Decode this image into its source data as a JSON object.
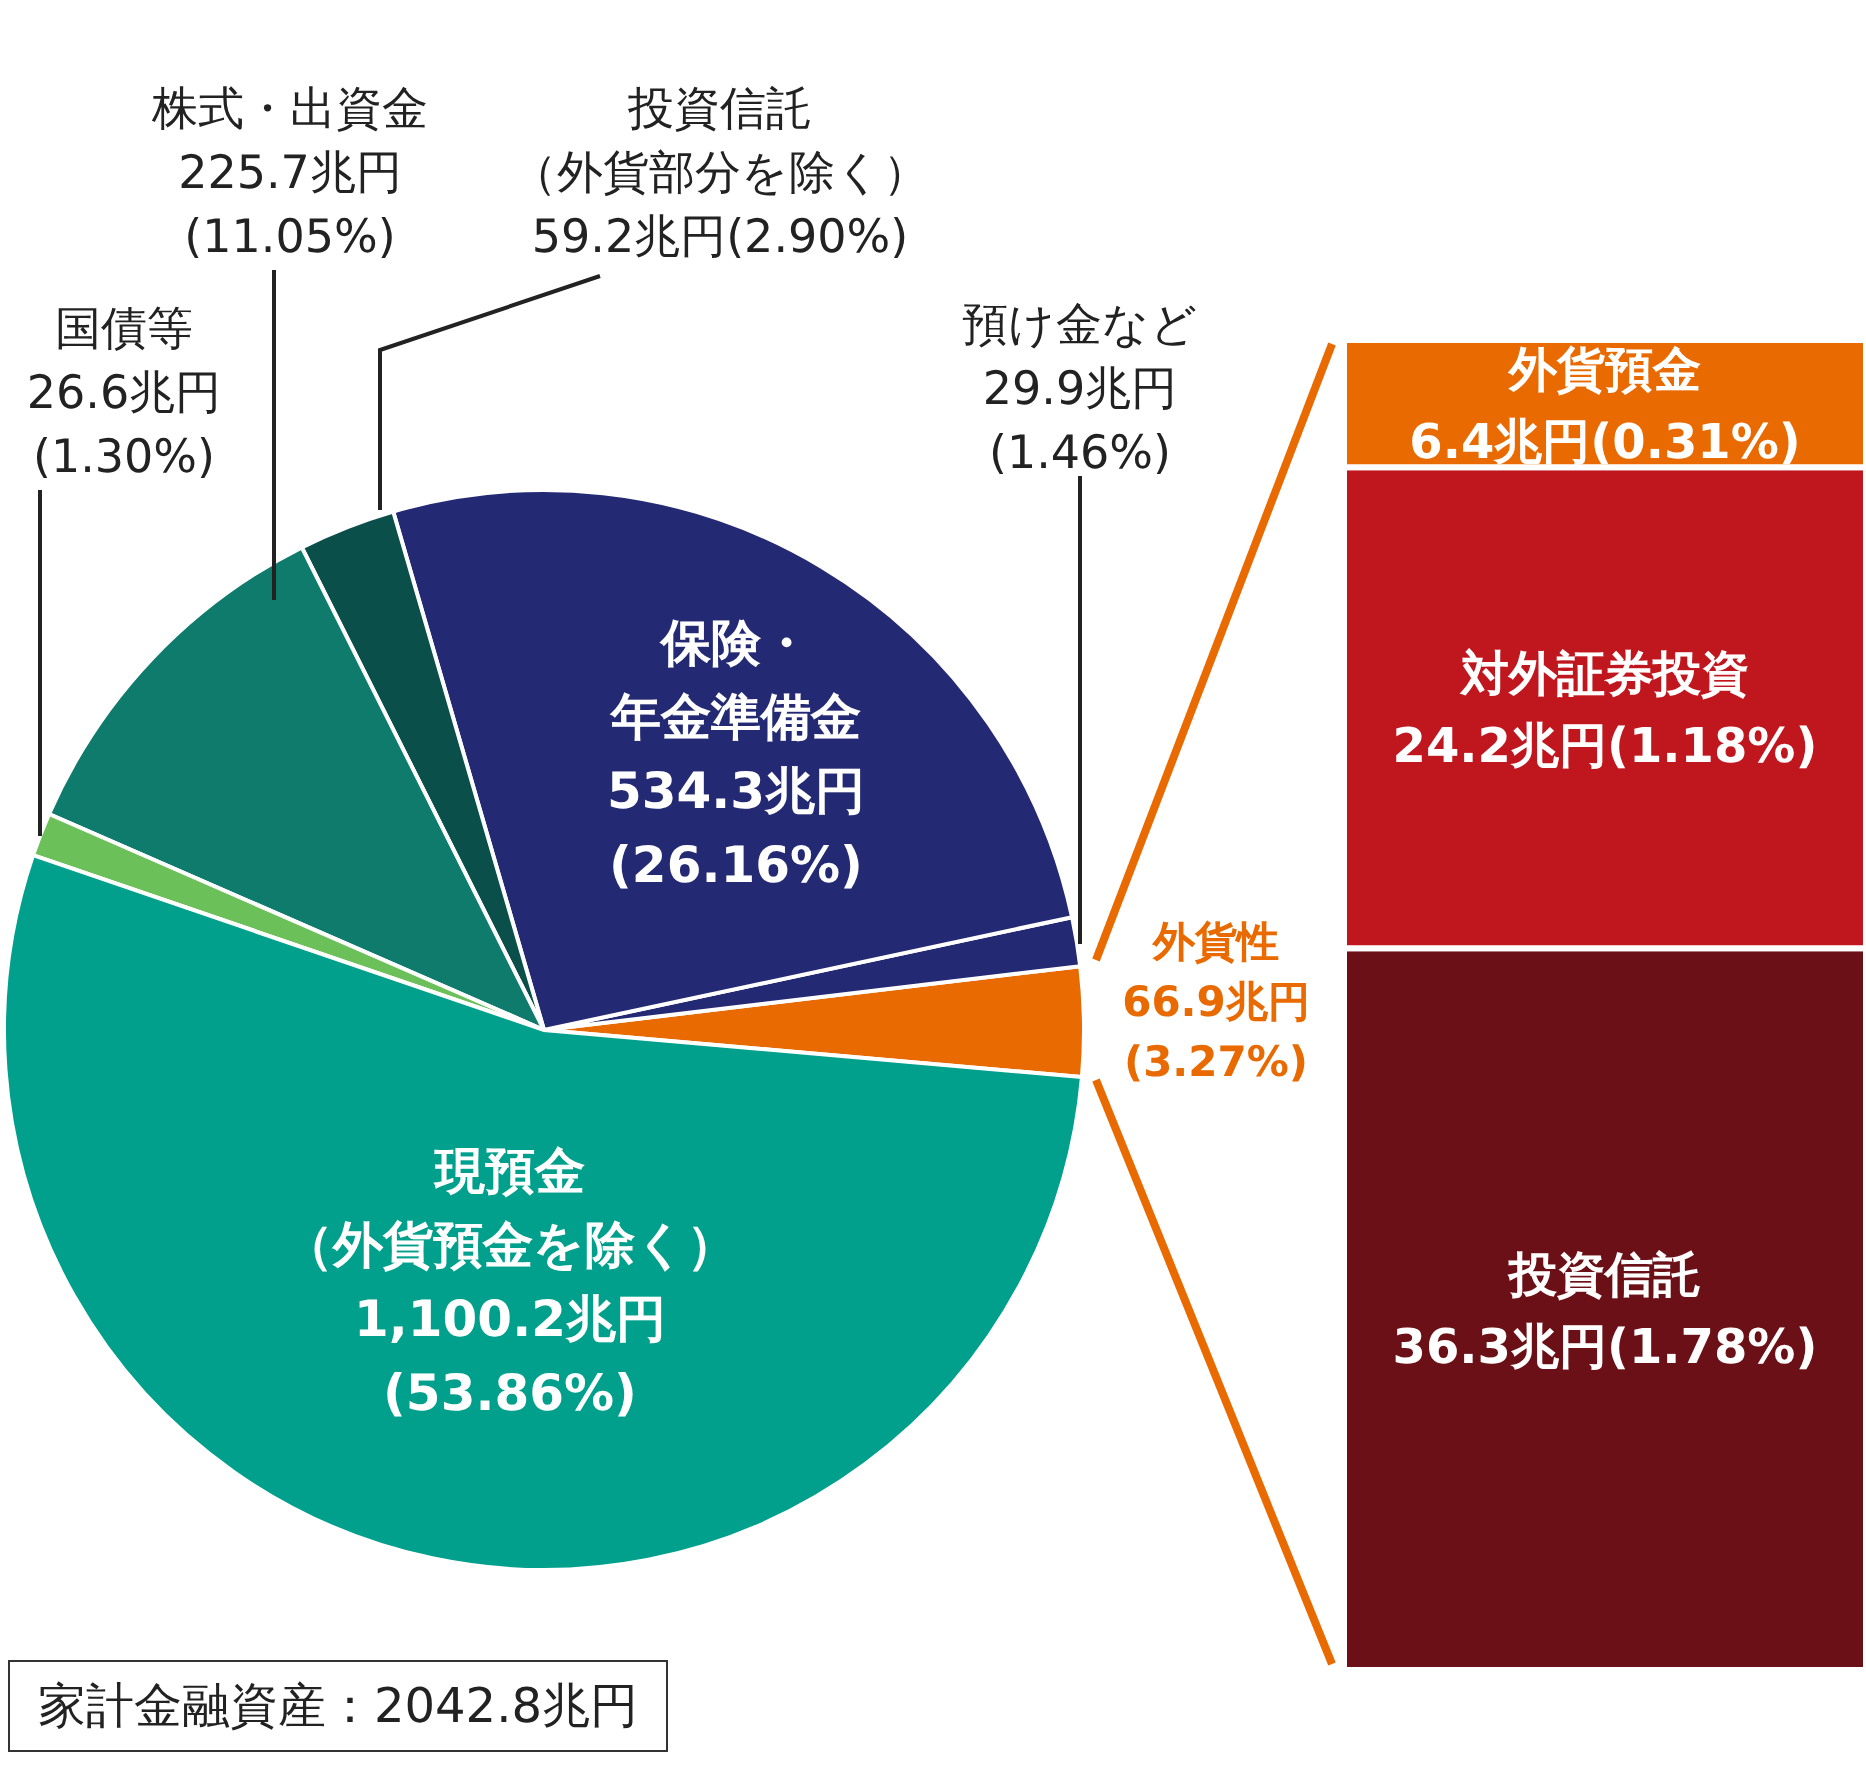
{
  "chart_data": [
    {
      "type": "pie",
      "categories": [
        "外貨性",
        "預け金など",
        "保険・年金準備金",
        "投資信託（外貨部分を除く）",
        "株式・出資金",
        "国債等",
        "現預金（外貨預金を除く）"
      ],
      "values": [
        66.9,
        29.9,
        534.3,
        59.2,
        225.7,
        26.6,
        1100.2
      ],
      "colors": [
        "#e86a00",
        "#232a73",
        "#232a73",
        "#0b4f4a",
        "#0e7b6c",
        "#6cc05a",
        "#00a08c"
      ],
      "value_labels": [
        "66.9兆円\n(3.27%)",
        "29.9兆円\n(1.46%)",
        "534.3兆円\n(26.16%)",
        "59.2兆円(2.90%)",
        "225.7兆円\n(11.05%)",
        "26.6兆円\n(1.30%)",
        "1,100.2兆円\n(53.86%)"
      ],
      "annotations": [
        "家計金融資産：2042.8兆円"
      ]
    },
    {
      "type": "bar",
      "stacked": true,
      "tick_labels": false,
      "categories": [
        null
      ],
      "series": [
        {
          "name": "投資信託",
          "color": "#6b1016",
          "values": [
            36.3
          ],
          "value_labels": [
            "36.3兆円(1.78%)"
          ]
        },
        {
          "name": "対外証券投資",
          "color": "#c0171f",
          "values": [
            24.2
          ],
          "value_labels": [
            "24.2兆円(1.18%)"
          ]
        },
        {
          "name": "外貨預金",
          "color": "#e86a00",
          "values": [
            6.4
          ],
          "value_labels": [
            "6.4兆円(0.31%)"
          ]
        }
      ]
    }
  ]
}
